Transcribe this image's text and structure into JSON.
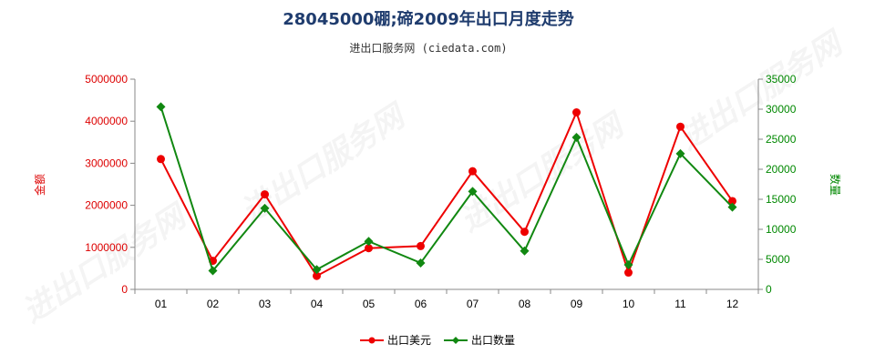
{
  "chart_data": {
    "type": "line",
    "title": "28045000硼;碲2009年出口月度走势",
    "subtitle": "进出口服务网 (ciedata.com)",
    "ylabel_left": "金额",
    "ylabel_right": "数量",
    "categories": [
      "01",
      "02",
      "03",
      "04",
      "05",
      "06",
      "07",
      "08",
      "09",
      "10",
      "11",
      "12"
    ],
    "y_left": {
      "min": 0,
      "max": 5000000,
      "ticks": [
        "0",
        "1000000",
        "2000000",
        "3000000",
        "4000000",
        "5000000"
      ]
    },
    "y_right": {
      "min": 0,
      "max": 35000,
      "ticks": [
        "0",
        "5000",
        "10000",
        "15000",
        "20000",
        "25000",
        "30000",
        "35000"
      ]
    },
    "series": [
      {
        "name": "出口美元",
        "axis": "left",
        "color": "#ee0000",
        "marker": "circle",
        "values": [
          3100000,
          680000,
          2260000,
          320000,
          980000,
          1030000,
          2810000,
          1370000,
          4210000,
          400000,
          3870000,
          2100000
        ]
      },
      {
        "name": "出口数量",
        "axis": "right",
        "color": "#118811",
        "marker": "diamond",
        "values": [
          30400,
          3100,
          13500,
          3300,
          8000,
          4400,
          16300,
          6400,
          25300,
          4100,
          22600,
          13700
        ]
      }
    ],
    "watermark": "进出口服务网",
    "legend_position": "bottom",
    "grid": false
  }
}
